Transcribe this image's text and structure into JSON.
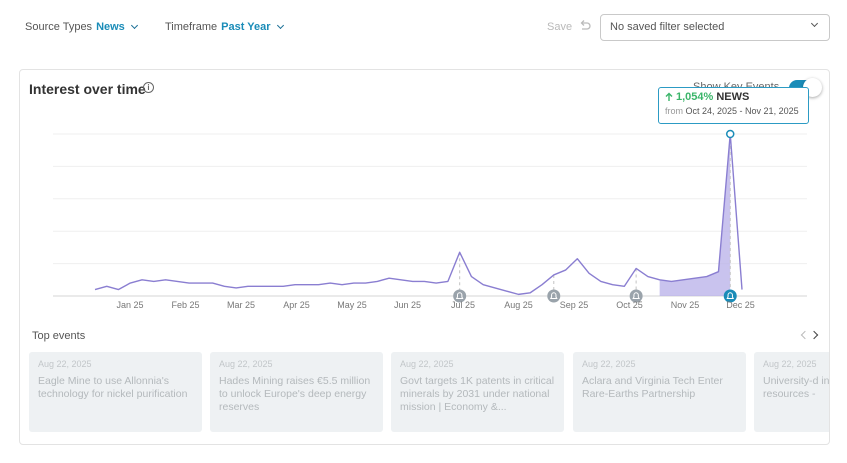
{
  "filters": {
    "source_label": "Source Types",
    "source_value": "News",
    "timeframe_label": "Timeframe",
    "timeframe_value": "Past Year",
    "save_label": "Save",
    "saved_filter_text": "No saved filter selected"
  },
  "panel": {
    "title": "Interest over time",
    "key_events_label": "Show Key Events",
    "key_events_enabled": true
  },
  "tooltip": {
    "change": "1,054%",
    "source": "NEWS",
    "from_label": "from",
    "range": "Oct 24, 2025 - Nov 21, 2025"
  },
  "colors": {
    "accent": "#1a8cb8",
    "line": "#8a7ed1",
    "area_fill": "#b7afe8",
    "positive": "#3bb56a",
    "event_marker": "#9aa3ab",
    "event_marker_active": "#1a8cb8"
  },
  "chart_data": {
    "type": "line",
    "x_labels": [
      "Jan 25",
      "Feb 25",
      "Mar 25",
      "Apr 25",
      "May 25",
      "Jun 25",
      "Jul 25",
      "Aug 25",
      "Sep 25",
      "Oct 25",
      "Nov 25",
      "Dec 25"
    ],
    "series": [
      {
        "values": [
          4,
          6,
          4,
          8,
          10,
          9,
          10,
          9,
          8,
          8,
          8,
          6,
          5,
          6,
          6,
          6,
          6,
          7,
          7,
          7,
          8,
          7,
          8,
          8,
          9,
          11,
          10,
          9,
          9,
          8,
          9,
          27,
          12,
          7,
          5,
          3,
          1,
          2,
          7,
          13,
          16,
          23,
          14,
          9,
          7,
          6,
          17,
          12,
          10,
          9,
          10,
          11,
          12,
          15,
          100,
          4
        ]
      }
    ],
    "highlight_range": [
      48,
      54
    ],
    "peak_index": 54,
    "key_event_indices": [
      31,
      39,
      46,
      54
    ],
    "ylim": [
      0,
      100
    ],
    "grid": true
  },
  "top_events": {
    "label": "Top events",
    "items": [
      {
        "date": "Aug 22, 2025",
        "title": "Eagle Mine to use Allonnia's technology for nickel purification"
      },
      {
        "date": "Aug 22, 2025",
        "title": "Hades Mining raises €5.5 million to unlock Europe's deep energy reserves"
      },
      {
        "date": "Aug 22, 2025",
        "title": "Govt targets 1K patents in critical minerals by 2031 under national mission | Economy &..."
      },
      {
        "date": "Aug 22, 2025",
        "title": "Aclara and Virginia Tech Enter Rare-Earths Partnership"
      },
      {
        "date": "Aug 22, 2025",
        "title": "University-d institute-for resources -"
      }
    ]
  }
}
